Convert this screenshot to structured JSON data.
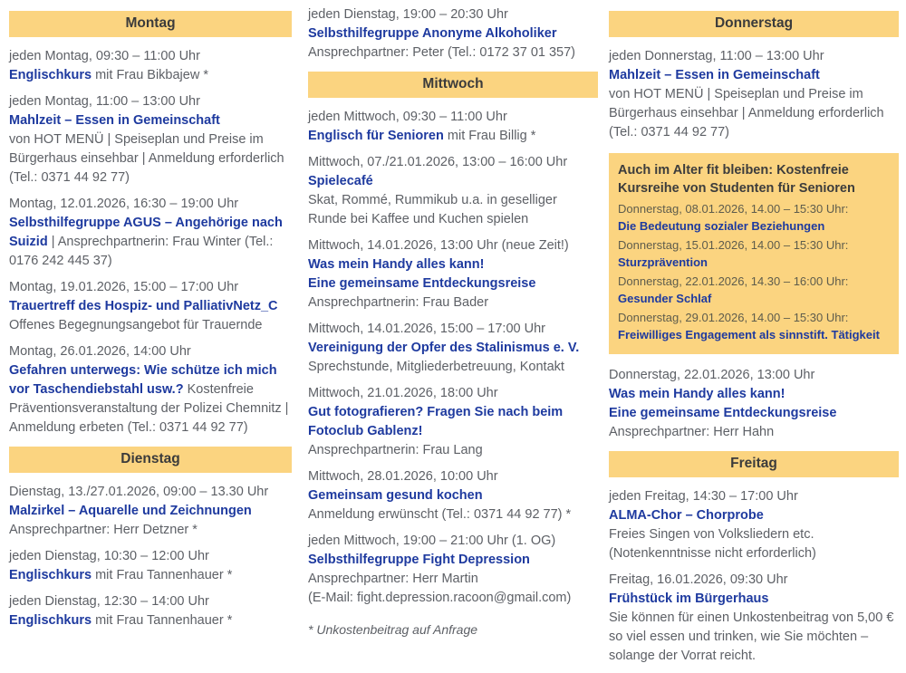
{
  "colors": {
    "header_bg": "#fbd480",
    "header_text": "#3b3b3b",
    "title_navy": "#1e3a9f",
    "body_gray": "#5d6066",
    "promo_bg": "#fbd480"
  },
  "columns": [
    {
      "blocks": [
        {
          "type": "header",
          "label": "Montag"
        },
        {
          "type": "entry",
          "date": "jeden Montag, 09:30 – 11:00 Uhr",
          "segments": [
            {
              "t": "Englischkurs",
              "b": true
            },
            {
              "t": " mit Frau Bikbajew *"
            }
          ]
        },
        {
          "type": "entry",
          "date": "jeden Montag, 11:00 – 13:00 Uhr",
          "segments": [
            {
              "t": "Mahlzeit – Essen in Gemeinschaft",
              "b": true,
              "br": true
            },
            {
              "t": "von HOT MENÜ | Speiseplan und Preise im Bürgerhaus einsehbar | Anmeldung erforderlich (Tel.: 0371 44 92 77)"
            }
          ]
        },
        {
          "type": "entry",
          "date": "Montag, 12.01.2026, 16:30 – 19:00 Uhr",
          "segments": [
            {
              "t": "Selbsthilfegruppe AGUS – Angehörige nach Suizid",
              "b": true
            },
            {
              "t": " | Ansprechpartnerin: Frau Winter (Tel.: 0176 242 445 37)"
            }
          ]
        },
        {
          "type": "entry",
          "date": "Montag, 19.01.2026, 15:00 – 17:00 Uhr",
          "segments": [
            {
              "t": "Trauertreff des Hospiz- und PalliativNetz_C",
              "b": true,
              "br": true
            },
            {
              "t": "Offenes Begegnungsangebot für Trauernde"
            }
          ]
        },
        {
          "type": "entry",
          "date": "Montag, 26.01.2026, 14:00 Uhr",
          "segments": [
            {
              "t": "Gefahren unterwegs: Wie schütze ich mich vor Taschendiebstahl usw.?",
              "b": true
            },
            {
              "t": " Kostenfreie Präventionsveranstaltung der Polizei Chemnitz | Anmeldung erbeten (Tel.: 0371 44 92 77)"
            }
          ]
        },
        {
          "type": "header",
          "label": "Dienstag"
        },
        {
          "type": "entry",
          "date": "Dienstag, 13./27.01.2026, 09:00 – 13.30 Uhr",
          "segments": [
            {
              "t": "Malzirkel – Aquarelle und Zeichnungen",
              "b": true,
              "br": true
            },
            {
              "t": "Ansprechpartner: Herr Detzner *"
            }
          ]
        },
        {
          "type": "entry",
          "date": "jeden Dienstag, 10:30 – 12:00 Uhr",
          "segments": [
            {
              "t": "Englischkurs",
              "b": true
            },
            {
              "t": " mit Frau Tannenhauer *"
            }
          ]
        },
        {
          "type": "entry",
          "date": "jeden Dienstag, 12:30 – 14:00 Uhr",
          "segments": [
            {
              "t": "Englischkurs",
              "b": true
            },
            {
              "t": " mit Frau Tannenhauer *"
            }
          ]
        }
      ]
    },
    {
      "blocks": [
        {
          "type": "entry",
          "date": "jeden Dienstag, 19:00 – 20:30 Uhr",
          "segments": [
            {
              "t": "Selbsthilfegruppe Anonyme Alkoholiker",
              "b": true,
              "br": true
            },
            {
              "t": "Ansprechpartner: Peter (Tel.: 0172 37 01 357)"
            }
          ]
        },
        {
          "type": "header",
          "label": "Mittwoch"
        },
        {
          "type": "entry",
          "date": "jeden Mittwoch, 09:30 – 11:00 Uhr",
          "segments": [
            {
              "t": "Englisch für Senioren",
              "b": true
            },
            {
              "t": " mit Frau Billig *"
            }
          ]
        },
        {
          "type": "entry",
          "date": "Mittwoch, 07./21.01.2026, 13:00 – 16:00 Uhr",
          "segments": [
            {
              "t": "Spielecafé",
              "b": true,
              "br": true
            },
            {
              "t": "Skat, Rommé, Rummikub u.a. in geselliger Runde bei Kaffee und Kuchen spielen"
            }
          ]
        },
        {
          "type": "entry",
          "date": "Mittwoch, 14.01.2026, 13:00 Uhr (neue Zeit!)",
          "segments": [
            {
              "t": "Was mein Handy alles kann!",
              "b": true,
              "br": true
            },
            {
              "t": "Eine gemeinsame Entdeckungsreise",
              "b": true,
              "br": true
            },
            {
              "t": "Ansprechpartnerin: Frau Bader"
            }
          ]
        },
        {
          "type": "entry",
          "date": "Mittwoch, 14.01.2026, 15:00 – 17:00 Uhr",
          "segments": [
            {
              "t": "Vereinigung der Opfer des Stalinismus e. V.",
              "b": true,
              "br": true
            },
            {
              "t": "Sprechstunde, Mitgliederbetreuung, Kontakt"
            }
          ]
        },
        {
          "type": "entry",
          "date": "Mittwoch, 21.01.2026, 18:00 Uhr",
          "segments": [
            {
              "t": "Gut fotografieren? Fragen Sie nach beim Fotoclub Gablenz!",
              "b": true,
              "br": true
            },
            {
              "t": "Ansprechpartnerin: Frau Lang"
            }
          ]
        },
        {
          "type": "entry",
          "date": "Mittwoch, 28.01.2026, 10:00 Uhr",
          "segments": [
            {
              "t": "Gemeinsam gesund kochen",
              "b": true,
              "br": true
            },
            {
              "t": "Anmeldung erwünscht (Tel.: 0371 44 92 77) *"
            }
          ]
        },
        {
          "type": "entry",
          "date": "jeden Mittwoch, 19:00 – 21:00 Uhr (1. OG)",
          "segments": [
            {
              "t": "Selbsthilfegruppe Fight Depression",
              "b": true,
              "br": true
            },
            {
              "t": "Ansprechpartner: Herr Martin",
              "br": true
            },
            {
              "t": "(E-Mail: fight.depression.racoon@gmail.com)"
            }
          ]
        },
        {
          "type": "note",
          "text": "* Unkostenbeitrag auf Anfrage"
        }
      ]
    },
    {
      "blocks": [
        {
          "type": "header",
          "label": "Donnerstag"
        },
        {
          "type": "entry",
          "date": "jeden Donnerstag, 11:00 – 13:00 Uhr",
          "segments": [
            {
              "t": "Mahlzeit – Essen in Gemeinschaft",
              "b": true,
              "br": true
            },
            {
              "t": "von HOT MENÜ | Speiseplan und Preise im Bürgerhaus einsehbar | Anmeldung erforderlich (Tel.: 0371 44 92 77)"
            }
          ]
        },
        {
          "type": "promo",
          "title": "Auch im Alter fit bleiben: Kostenfreie Kursreihe von Studenten für Senioren",
          "items": [
            {
              "date": "Donnerstag, 08.01.2026, 14.00 – 15:30 Uhr:",
              "title": "Die Bedeutung sozialer Beziehungen"
            },
            {
              "date": "Donnerstag, 15.01.2026, 14.00 – 15:30 Uhr:",
              "title": "Sturzprävention"
            },
            {
              "date": "Donnerstag, 22.01.2026, 14.30 – 16:00 Uhr:",
              "title": "Gesunder Schlaf"
            },
            {
              "date": "Donnerstag, 29.01.2026, 14.00 – 15:30 Uhr:",
              "title": "Freiwilliges Engagement als sinnstift. Tätigkeit"
            }
          ]
        },
        {
          "type": "entry",
          "date": "Donnerstag, 22.01.2026, 13:00 Uhr",
          "segments": [
            {
              "t": "Was mein Handy alles kann!",
              "b": true,
              "br": true
            },
            {
              "t": "Eine gemeinsame Entdeckungsreise",
              "b": true,
              "br": true
            },
            {
              "t": "Ansprechpartner: Herr Hahn"
            }
          ]
        },
        {
          "type": "header",
          "label": "Freitag"
        },
        {
          "type": "entry",
          "date": "jeden Freitag, 14:30 – 17:00 Uhr",
          "segments": [
            {
              "t": "ALMA-Chor – Chorprobe",
              "b": true,
              "br": true
            },
            {
              "t": "Freies Singen von Volksliedern etc.",
              "br": true
            },
            {
              "t": "(Notenkenntnisse nicht erforderlich)"
            }
          ]
        },
        {
          "type": "entry",
          "date": "Freitag, 16.01.2026, 09:30 Uhr",
          "segments": [
            {
              "t": "Frühstück im Bürgerhaus",
              "b": true,
              "br": true
            },
            {
              "t": "Sie können für einen Unkostenbeitrag von 5,00 € so viel essen und trinken, wie Sie möchten – solange der Vorrat reicht."
            }
          ]
        }
      ]
    }
  ]
}
